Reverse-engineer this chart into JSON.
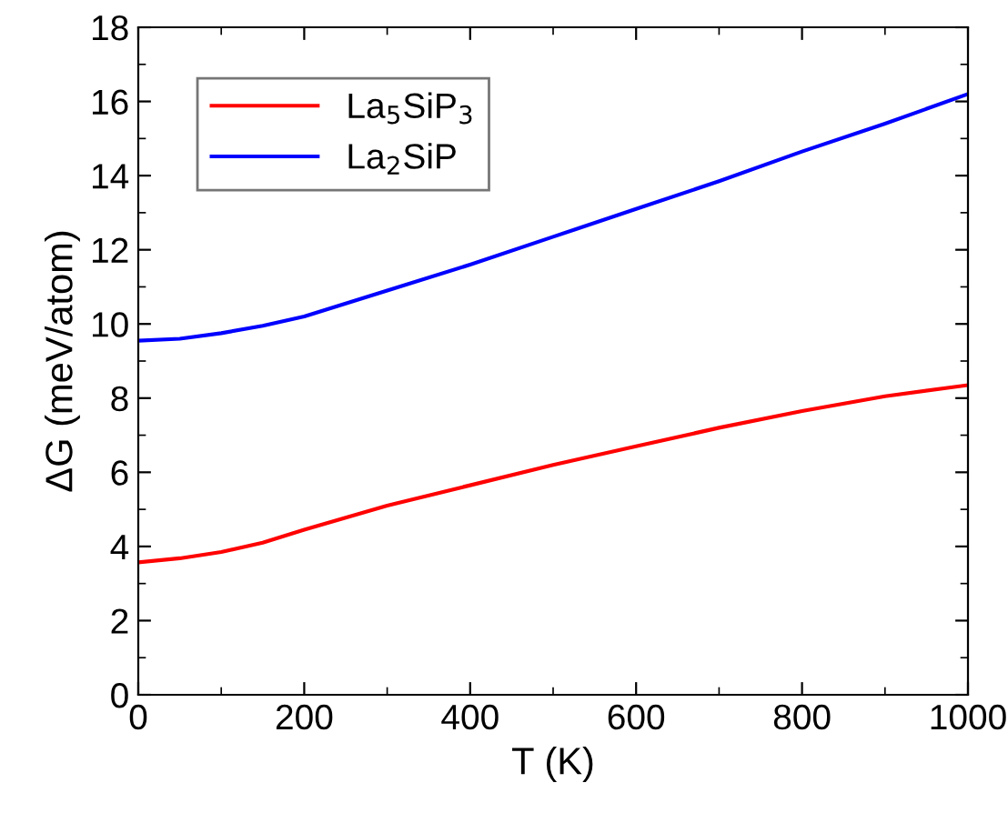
{
  "chart_data": {
    "type": "line",
    "xlabel": "T (K)",
    "ylabel": "ΔG (meV/atom)",
    "xlim": [
      0,
      1000
    ],
    "xticks": [
      0,
      200,
      400,
      600,
      800,
      1000
    ],
    "ylim": [
      0,
      18
    ],
    "yticks": [
      0,
      2,
      4,
      6,
      8,
      10,
      12,
      14,
      16,
      18
    ],
    "grid": false,
    "legend": "top left",
    "marker": "none",
    "line_style": "solid",
    "x": [
      0,
      50,
      100,
      150,
      200,
      300,
      400,
      500,
      600,
      700,
      800,
      900,
      1000
    ],
    "series": [
      {
        "name": "La$_{5}$SiP$_{3}$",
        "color": "#ff0000",
        "values": [
          3.57,
          3.68,
          3.85,
          4.1,
          4.45,
          5.1,
          5.65,
          6.2,
          6.7,
          7.2,
          7.65,
          8.05,
          8.35
        ]
      },
      {
        "name": "La$_{2}$SiP",
        "color": "#0000ff",
        "values": [
          9.55,
          9.6,
          9.75,
          9.95,
          10.2,
          10.9,
          11.6,
          12.35,
          13.1,
          13.85,
          14.65,
          15.4,
          16.2
        ]
      }
    ]
  }
}
